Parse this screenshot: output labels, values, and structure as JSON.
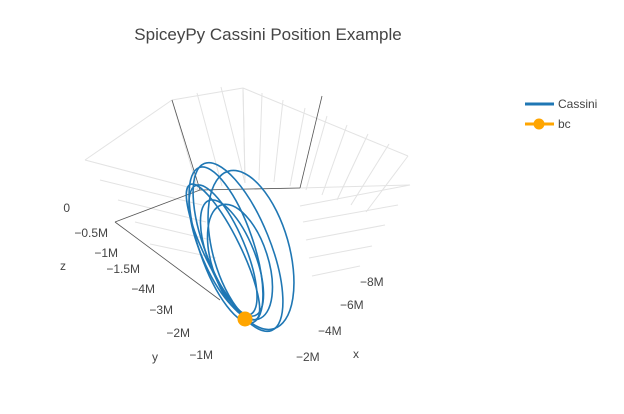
{
  "chart_data": {
    "type": "line",
    "projection": "3d",
    "title": "SpiceyPy Cassini Position Example",
    "axes": {
      "x": {
        "label": "x",
        "ticks": [
          "−8M",
          "−6M",
          "−4M",
          "−2M"
        ]
      },
      "y": {
        "label": "y",
        "ticks": [
          "−1M"
        ]
      },
      "z": {
        "label": "z",
        "ticks": [
          "0",
          "−0.5M",
          "−1M",
          "−1.5M",
          "−4M",
          "−3M",
          "−2M"
        ]
      }
    },
    "grid": true,
    "legend_position": "top-right",
    "series": [
      {
        "name": "Cassini",
        "color": "#1f77b4",
        "mode": "lines",
        "orbits": 7
      },
      {
        "name": "bc",
        "color": "#ffa500",
        "mode": "lines+markers"
      }
    ]
  }
}
